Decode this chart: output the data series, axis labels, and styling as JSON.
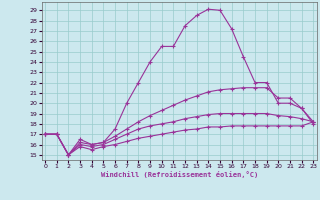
{
  "xlabel": "Windchill (Refroidissement éolien,°C)",
  "x_ticks": [
    0,
    1,
    2,
    3,
    4,
    5,
    6,
    7,
    8,
    9,
    10,
    11,
    12,
    13,
    14,
    15,
    16,
    17,
    18,
    19,
    20,
    21,
    22,
    23
  ],
  "y_ticks": [
    15,
    16,
    17,
    18,
    19,
    20,
    21,
    22,
    23,
    24,
    25,
    26,
    27,
    28,
    29
  ],
  "xlim": [
    -0.3,
    23.3
  ],
  "ylim": [
    14.5,
    29.8
  ],
  "bg_color": "#cce8ee",
  "line_color": "#993399",
  "grid_color": "#99cccc",
  "series": [
    {
      "x": [
        0,
        1,
        2,
        3,
        4,
        5,
        6,
        7,
        8,
        9,
        10,
        11,
        12,
        13,
        14,
        15,
        16,
        17,
        18,
        19,
        20,
        21,
        22,
        23
      ],
      "y": [
        17.0,
        17.0,
        15.0,
        16.5,
        16.0,
        16.2,
        17.5,
        20.0,
        22.0,
        24.0,
        25.5,
        25.5,
        27.5,
        28.5,
        29.1,
        29.0,
        27.2,
        24.5,
        22.0,
        22.0,
        20.0,
        20.0,
        19.5,
        18.0
      ]
    },
    {
      "x": [
        0,
        1,
        2,
        3,
        4,
        5,
        6,
        7,
        8,
        9,
        10,
        11,
        12,
        13,
        14,
        15,
        16,
        17,
        18,
        19,
        20,
        21,
        22,
        23
      ],
      "y": [
        17.0,
        17.0,
        15.0,
        16.2,
        16.0,
        16.2,
        16.8,
        17.5,
        18.2,
        18.8,
        19.3,
        19.8,
        20.3,
        20.7,
        21.1,
        21.3,
        21.4,
        21.5,
        21.5,
        21.5,
        20.5,
        20.5,
        19.5,
        18.2
      ]
    },
    {
      "x": [
        0,
        1,
        2,
        3,
        4,
        5,
        6,
        7,
        8,
        9,
        10,
        11,
        12,
        13,
        14,
        15,
        16,
        17,
        18,
        19,
        20,
        21,
        22,
        23
      ],
      "y": [
        17.0,
        17.0,
        15.0,
        16.0,
        15.8,
        16.0,
        16.5,
        17.0,
        17.5,
        17.8,
        18.0,
        18.2,
        18.5,
        18.7,
        18.9,
        19.0,
        19.0,
        19.0,
        19.0,
        19.0,
        18.8,
        18.7,
        18.5,
        18.2
      ]
    },
    {
      "x": [
        0,
        1,
        2,
        3,
        4,
        5,
        6,
        7,
        8,
        9,
        10,
        11,
        12,
        13,
        14,
        15,
        16,
        17,
        18,
        19,
        20,
        21,
        22,
        23
      ],
      "y": [
        17.0,
        17.0,
        15.0,
        15.8,
        15.5,
        15.8,
        16.0,
        16.3,
        16.6,
        16.8,
        17.0,
        17.2,
        17.4,
        17.5,
        17.7,
        17.7,
        17.8,
        17.8,
        17.8,
        17.8,
        17.8,
        17.8,
        17.8,
        18.2
      ]
    }
  ]
}
